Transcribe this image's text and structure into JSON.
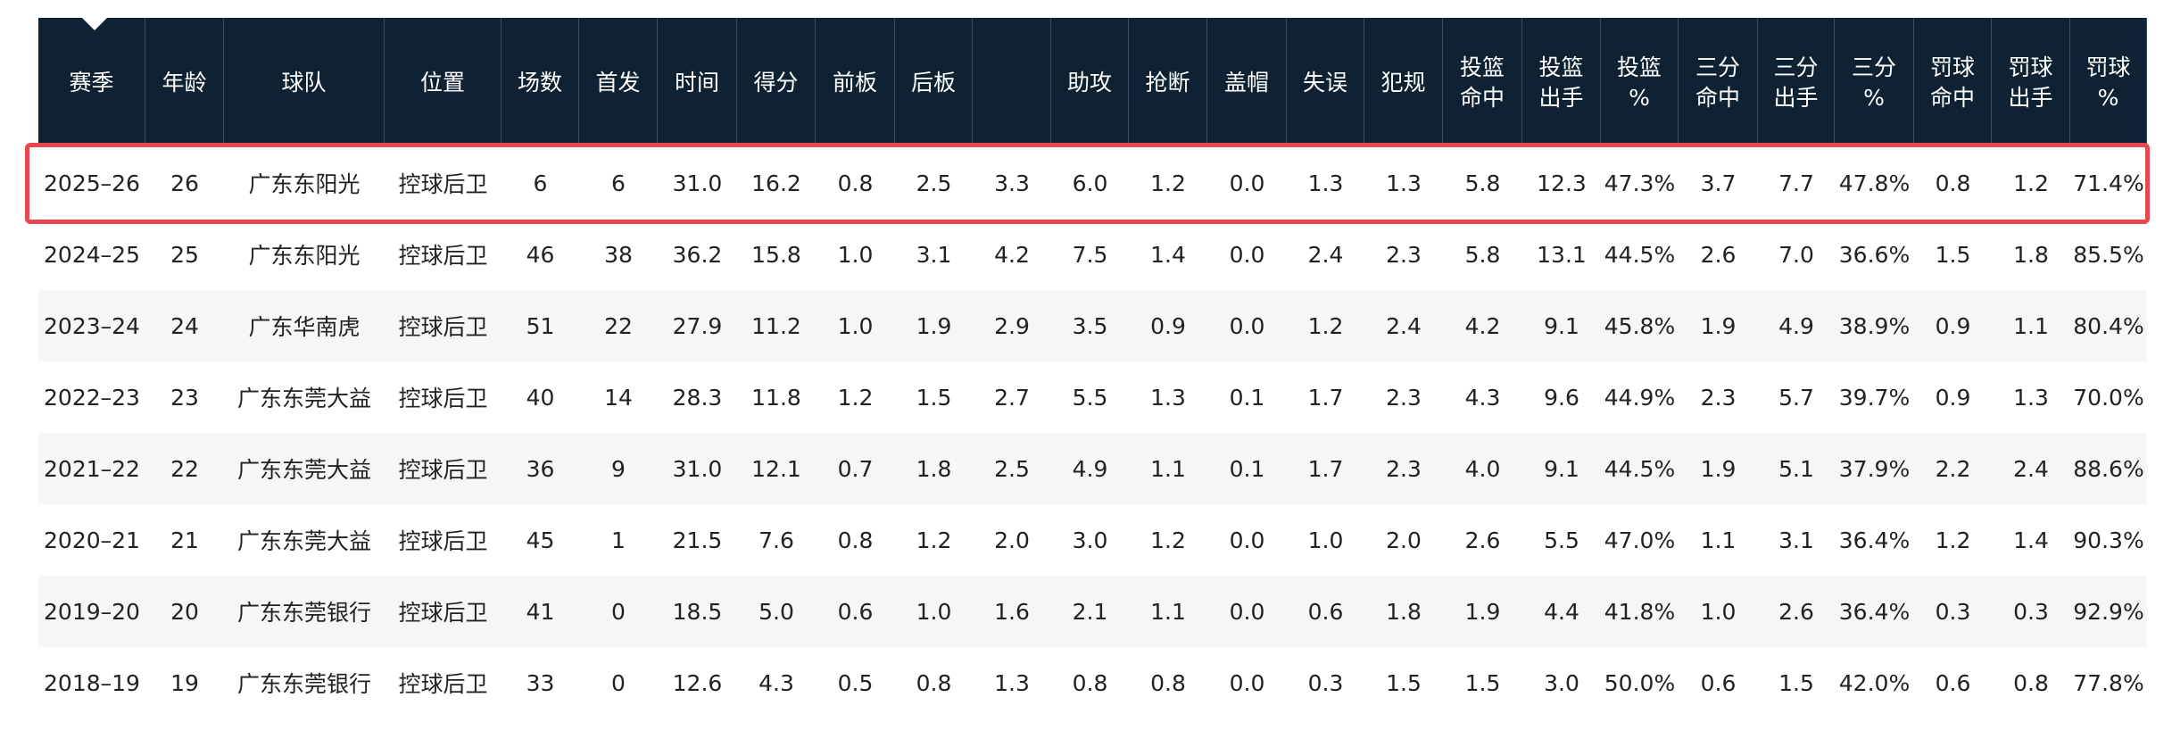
{
  "table": {
    "headers": [
      "赛季",
      "年龄",
      "球队",
      "位置",
      "场数",
      "首发",
      "时间",
      "得分",
      "前板",
      "后板",
      null,
      "助攻",
      "抢断",
      "盖帽",
      "失误",
      "犯规",
      "投篮\n命中",
      "投篮\n出手",
      "投篮\n%",
      "三分\n命中",
      "三分\n出手",
      "三分\n%",
      "罚球\n命中",
      "罚球\n出手",
      "罚球\n%"
    ],
    "rows": [
      [
        "2025–26",
        "26",
        "广东东阳光",
        "控球后卫",
        "6",
        "6",
        "31.0",
        "16.2",
        "0.8",
        "2.5",
        "3.3",
        "6.0",
        "1.2",
        "0.0",
        "1.3",
        "1.3",
        "5.8",
        "12.3",
        "47.3%",
        "3.7",
        "7.7",
        "47.8%",
        "0.8",
        "1.2",
        "71.4%"
      ],
      [
        "2024–25",
        "25",
        "广东东阳光",
        "控球后卫",
        "46",
        "38",
        "36.2",
        "15.8",
        "1.0",
        "3.1",
        "4.2",
        "7.5",
        "1.4",
        "0.0",
        "2.4",
        "2.3",
        "5.8",
        "13.1",
        "44.5%",
        "2.6",
        "7.0",
        "36.6%",
        "1.5",
        "1.8",
        "85.5%"
      ],
      [
        "2023–24",
        "24",
        "广东华南虎",
        "控球后卫",
        "51",
        "22",
        "27.9",
        "11.2",
        "1.0",
        "1.9",
        "2.9",
        "3.5",
        "0.9",
        "0.0",
        "1.2",
        "2.4",
        "4.2",
        "9.1",
        "45.8%",
        "1.9",
        "4.9",
        "38.9%",
        "0.9",
        "1.1",
        "80.4%"
      ],
      [
        "2022–23",
        "23",
        "广东东莞大益",
        "控球后卫",
        "40",
        "14",
        "28.3",
        "11.8",
        "1.2",
        "1.5",
        "2.7",
        "5.5",
        "1.3",
        "0.1",
        "1.7",
        "2.3",
        "4.3",
        "9.6",
        "44.9%",
        "2.3",
        "5.7",
        "39.7%",
        "0.9",
        "1.3",
        "70.0%"
      ],
      [
        "2021–22",
        "22",
        "广东东莞大益",
        "控球后卫",
        "36",
        "9",
        "31.0",
        "12.1",
        "0.7",
        "1.8",
        "2.5",
        "4.9",
        "1.1",
        "0.1",
        "1.7",
        "2.3",
        "4.0",
        "9.1",
        "44.5%",
        "1.9",
        "5.1",
        "37.9%",
        "2.2",
        "2.4",
        "88.6%"
      ],
      [
        "2020–21",
        "21",
        "广东东莞大益",
        "控球后卫",
        "45",
        "1",
        "21.5",
        "7.6",
        "0.8",
        "1.2",
        "2.0",
        "3.0",
        "1.2",
        "0.0",
        "1.0",
        "2.0",
        "2.6",
        "5.5",
        "47.0%",
        "1.1",
        "3.1",
        "36.4%",
        "1.2",
        "1.4",
        "90.3%"
      ],
      [
        "2019–20",
        "20",
        "广东东莞银行",
        "控球后卫",
        "41",
        "0",
        "18.5",
        "5.0",
        "0.6",
        "1.0",
        "1.6",
        "2.1",
        "1.1",
        "0.0",
        "0.6",
        "1.8",
        "1.9",
        "4.4",
        "41.8%",
        "1.0",
        "2.6",
        "36.4%",
        "0.3",
        "0.3",
        "92.9%"
      ],
      [
        "2018–19",
        "19",
        "广东东莞银行",
        "控球后卫",
        "33",
        "0",
        "12.6",
        "4.3",
        "0.5",
        "0.8",
        "1.3",
        "0.8",
        "0.8",
        "0.0",
        "0.3",
        "1.5",
        "1.5",
        "3.0",
        "50.0%",
        "0.6",
        "1.5",
        "42.0%",
        "0.6",
        "0.8",
        "77.8%"
      ]
    ]
  }
}
